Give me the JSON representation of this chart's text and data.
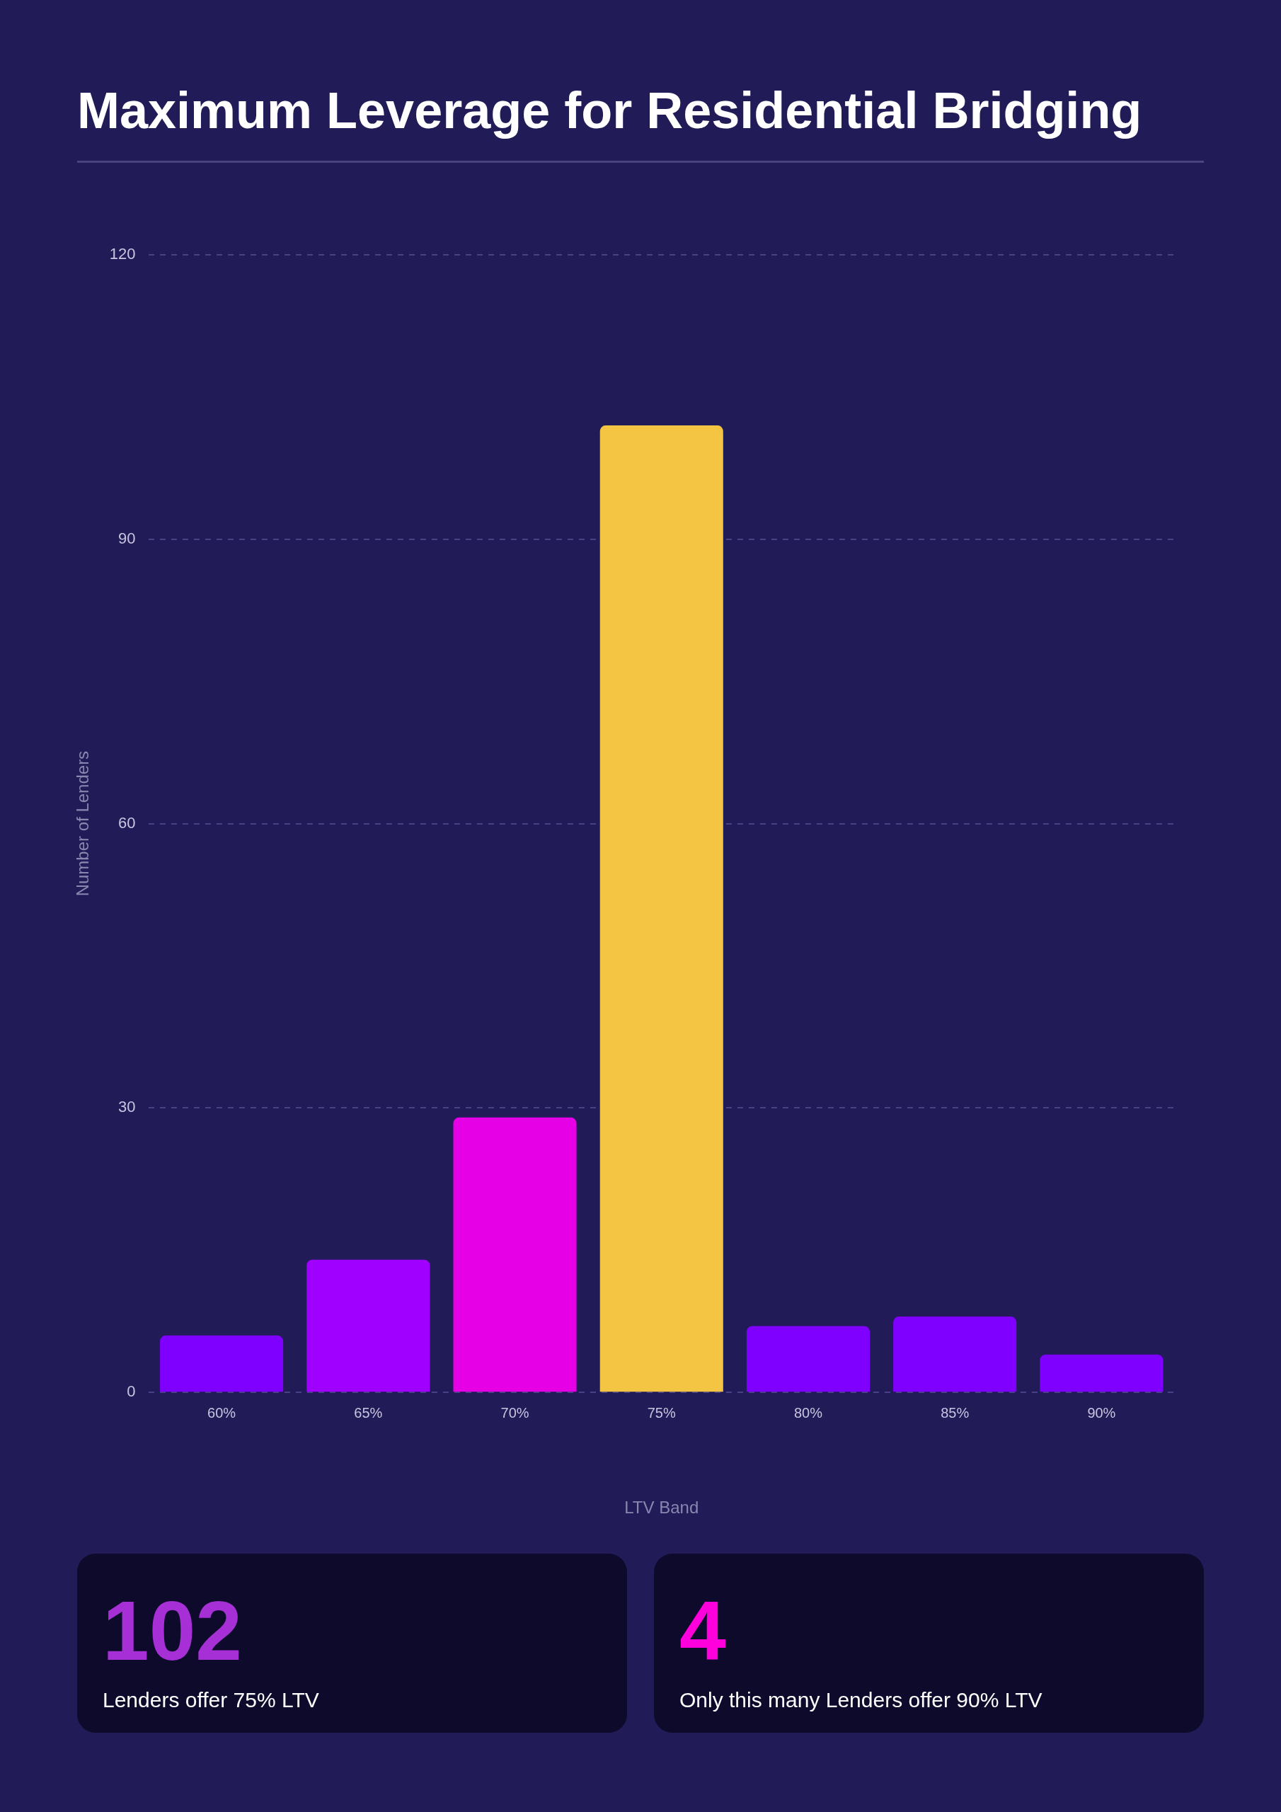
{
  "chart_data": {
    "type": "bar",
    "title": "Maximum Leverage for Residential Bridging",
    "xlabel": "LTV Band",
    "ylabel": "Number of Lenders",
    "categories": [
      "60%",
      "65%",
      "70%",
      "75%",
      "80%",
      "85%",
      "90%"
    ],
    "values": [
      6,
      14,
      29,
      102,
      7,
      8,
      4
    ],
    "colors": [
      "#8000ff",
      "#a000ff",
      "#e600e6",
      "#f4c542",
      "#8000ff",
      "#8000ff",
      "#8000ff"
    ],
    "ylim": [
      0,
      120
    ],
    "yticks": [
      0,
      30,
      60,
      90,
      120
    ],
    "grid": "y",
    "legend": false,
    "annotations": [
      "102",
      "Lenders offer 75% LTV",
      "4",
      "Only this many Lenders offer 90% LTV"
    ]
  }
}
